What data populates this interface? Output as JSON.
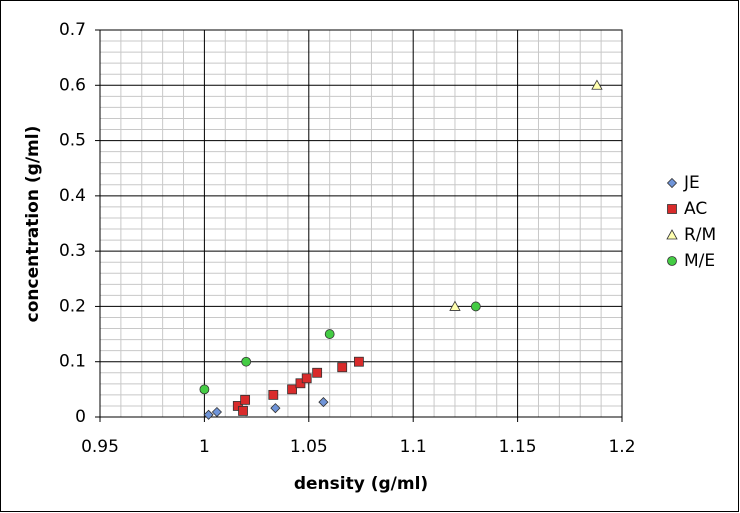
{
  "chart_data": {
    "type": "scatter",
    "xlabel": "density (g/ml)",
    "ylabel": "concentration (g/ml)",
    "xlim": [
      0.95,
      1.2
    ],
    "xticks": [
      0.95,
      1,
      1.05,
      1.1,
      1.15,
      1.2
    ],
    "ylim": [
      0,
      0.7
    ],
    "yticks": [
      0,
      0.1,
      0.2,
      0.3,
      0.4,
      0.5,
      0.6,
      0.7
    ],
    "grid": true,
    "legend": "right",
    "series": [
      {
        "name": "JE",
        "color": "#6f94d8",
        "marker": "diamond",
        "x": [
          1.002,
          1.006,
          1.018,
          1.034,
          1.057
        ],
        "values": [
          0.004,
          0.009,
          0.013,
          0.016,
          0.027
        ]
      },
      {
        "name": "AC",
        "color": "#d92b2b",
        "marker": "square",
        "x": [
          1.016,
          1.0185,
          1.0195,
          1.033,
          1.042,
          1.046,
          1.049,
          1.054,
          1.066,
          1.074
        ],
        "values": [
          0.02,
          0.011,
          0.031,
          0.04,
          0.05,
          0.061,
          0.07,
          0.08,
          0.09,
          0.1
        ]
      },
      {
        "name": "R/M",
        "color": "#ffffb0",
        "marker": "triangle",
        "x": [
          1.12,
          1.188
        ],
        "values": [
          0.2,
          0.6
        ]
      },
      {
        "name": "M/E",
        "color": "#44cc44",
        "marker": "circle",
        "x": [
          1.0,
          1.02,
          1.06,
          1.13
        ],
        "values": [
          0.05,
          0.1,
          0.15,
          0.2
        ]
      }
    ]
  }
}
